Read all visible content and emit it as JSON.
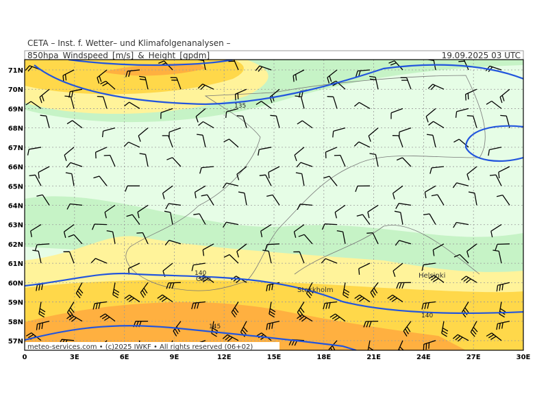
{
  "header": {
    "org": "CETA – Inst. f. Wetter– und Klimafolgenanalysen –",
    "product": "850hpa_Windspeed_[m/s]_&_Height_[gpdm]",
    "valid": "19.09.2025 03 UTC"
  },
  "map": {
    "lat_ticks": [
      "71N",
      "70N",
      "69N",
      "68N",
      "67N",
      "66N",
      "65N",
      "64N",
      "63N",
      "62N",
      "61N",
      "60N",
      "59N",
      "58N",
      "57N"
    ],
    "lon_ticks": [
      "0",
      "3E",
      "6E",
      "9E",
      "12E",
      "15E",
      "18E",
      "21E",
      "24E",
      "27E",
      "30E"
    ],
    "cities": [
      "Oslo",
      "Stockholm",
      "Helsinki"
    ],
    "contour_labels": [
      "135",
      "140",
      "140",
      "145"
    ],
    "footer": "meteo-services.com • (c)2025 IWKF • All rights reserved (06+02)"
  }
}
